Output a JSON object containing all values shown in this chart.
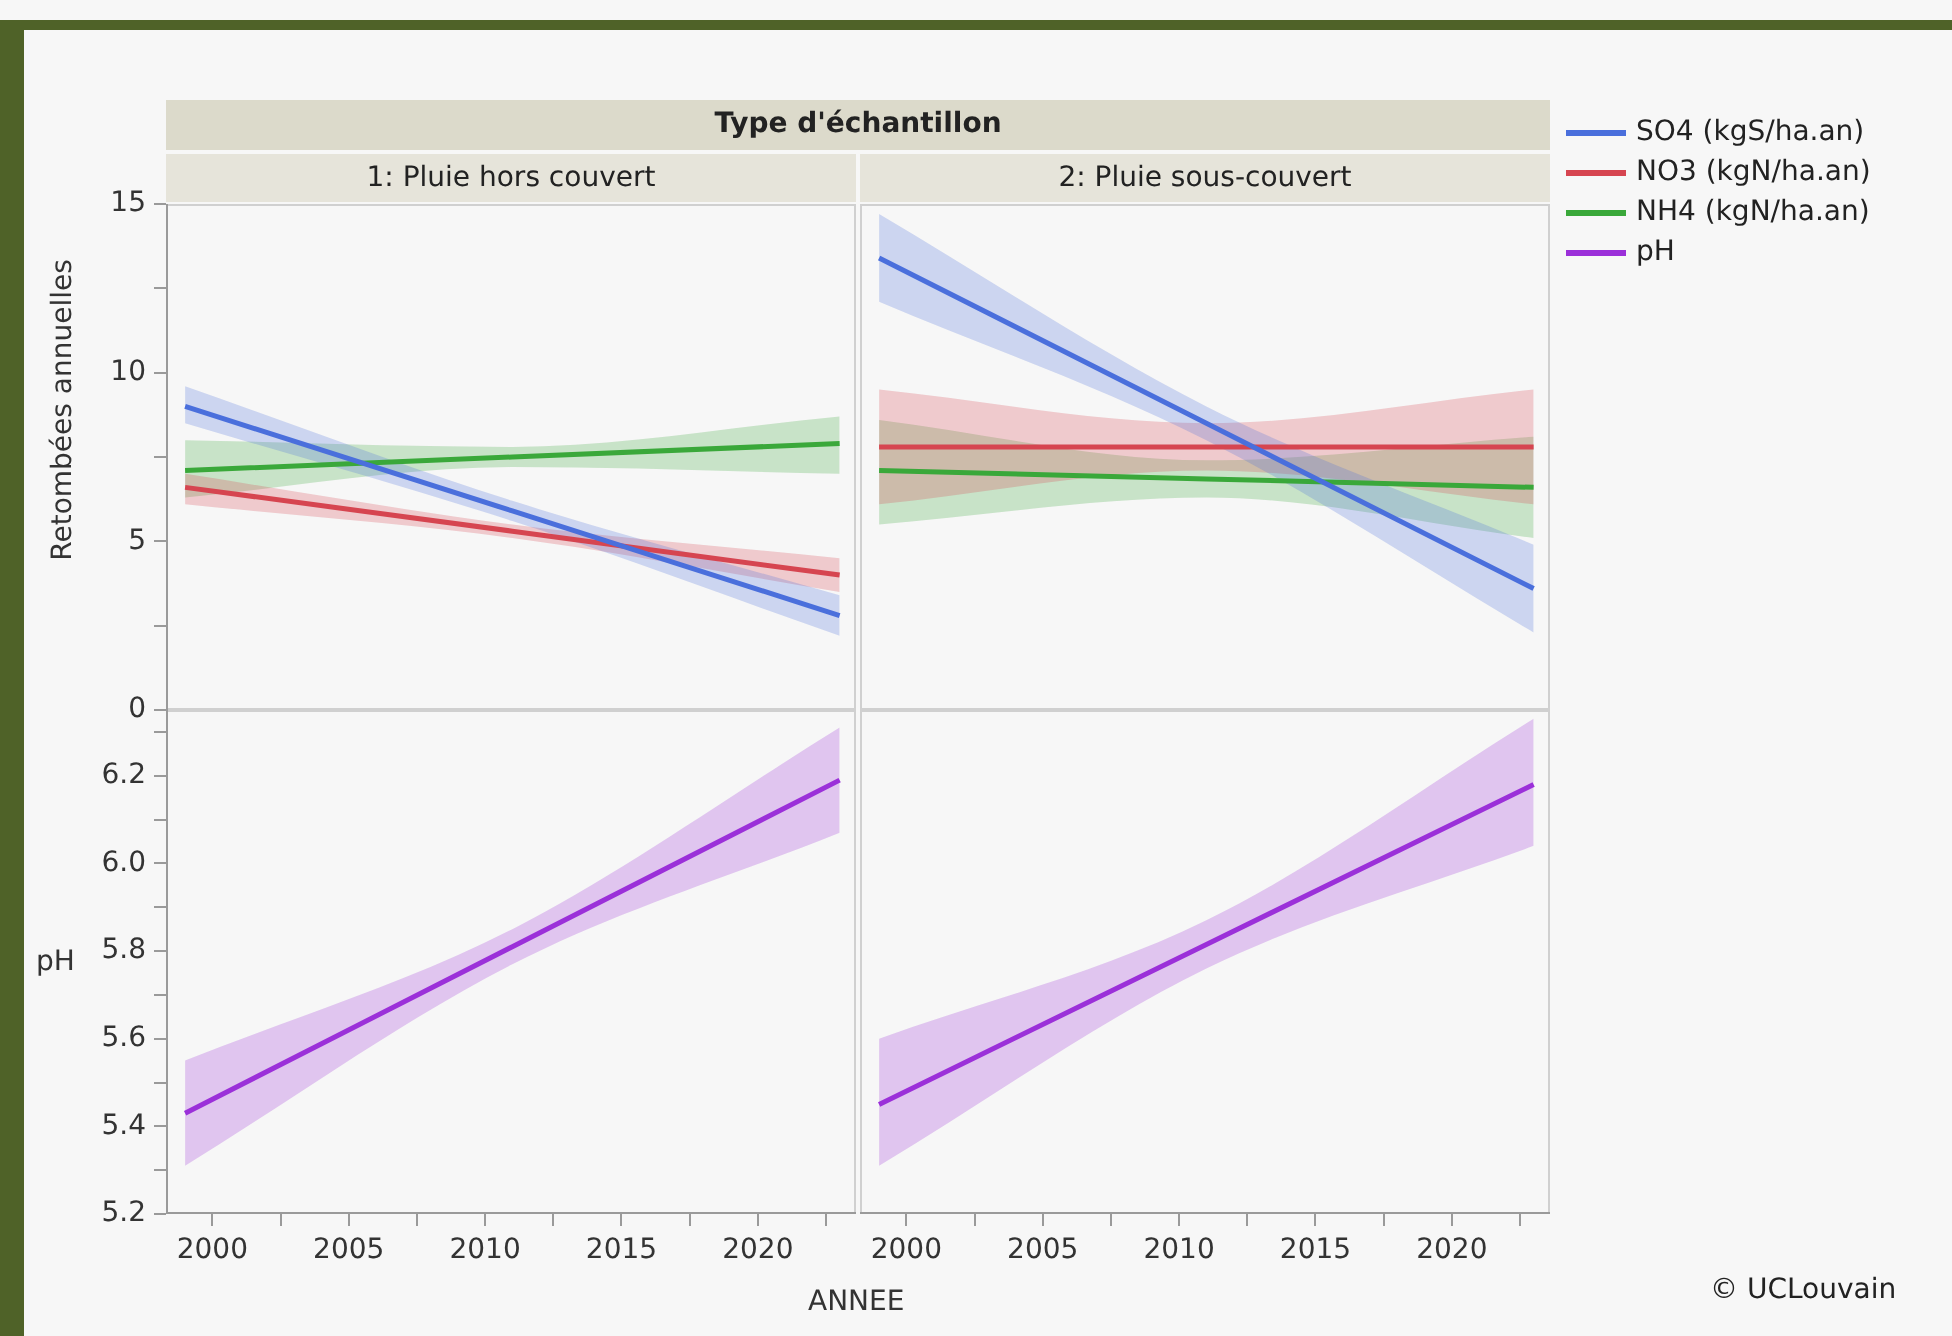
{
  "chart_data": [
    {
      "type": "line",
      "title": "Type d'échantillon",
      "subtitle": "1: Pluie hors couvert",
      "ylabel": "Retombées annuelles",
      "x": [
        1999,
        2011,
        2023
      ],
      "xlim": [
        1998.3,
        2023.6
      ],
      "ylim": [
        0,
        15
      ],
      "yticks": [
        0,
        {
          "value": 2.5,
          "label": null
        },
        5,
        {
          "value": 7.5,
          "label": null
        },
        10,
        {
          "value": 12.5,
          "label": null
        },
        15
      ],
      "tick_labels": "y",
      "marker": "none",
      "series": [
        {
          "color": "#4a6fdc",
          "values": [
            9.0,
            5.9,
            2.8
          ],
          "lower": [
            8.5,
            5.6,
            2.2
          ],
          "upper": [
            9.6,
            6.2,
            3.4
          ]
        },
        {
          "color": "#d64550",
          "values": [
            6.6,
            5.3,
            4.0
          ],
          "lower": [
            6.1,
            5.1,
            3.5
          ],
          "upper": [
            7.0,
            5.5,
            4.5
          ]
        },
        {
          "color": "#3aa83a",
          "values": [
            7.1,
            7.5,
            7.9
          ],
          "lower": [
            6.3,
            7.2,
            7.0
          ],
          "upper": [
            8.0,
            7.8,
            8.7
          ]
        }
      ]
    },
    {
      "type": "line",
      "subtitle": "2: Pluie sous-couvert",
      "x": [
        1999,
        2011,
        2023
      ],
      "xlim": [
        1998.3,
        2023.6
      ],
      "ylim": [
        0,
        15
      ],
      "tick_labels": false,
      "marker": "none",
      "legend": "right",
      "series": [
        {
          "name": "SO4 (kgS/ha.an)",
          "color": "#4a6fdc",
          "values": [
            13.4,
            8.5,
            3.6
          ],
          "lower": [
            12.1,
            8.0,
            2.3
          ],
          "upper": [
            14.7,
            9.0,
            4.9
          ]
        },
        {
          "name": "NO3 (kgN/ha.an)",
          "color": "#d64550",
          "values": [
            7.8,
            7.8,
            7.8
          ],
          "lower": [
            6.1,
            7.1,
            6.1
          ],
          "upper": [
            9.5,
            8.5,
            9.5
          ]
        },
        {
          "name": "NH4 (kgN/ha.an)",
          "color": "#3aa83a",
          "values": [
            7.1,
            6.85,
            6.6
          ],
          "lower": [
            5.5,
            6.3,
            5.1
          ],
          "upper": [
            8.6,
            7.4,
            8.1
          ]
        }
      ]
    },
    {
      "type": "line",
      "ylabel": "pH",
      "xlabel": "ANNEE",
      "x": [
        1999,
        2011,
        2023
      ],
      "xlim": [
        1998.3,
        2023.6
      ],
      "xticks": [
        2000,
        {
          "value": 2002.5,
          "label": null
        },
        2005,
        {
          "value": 2007.5,
          "label": null
        },
        2010,
        {
          "value": 2012.5,
          "label": null
        },
        2015,
        {
          "value": 2017.5,
          "label": null
        },
        2020,
        {
          "value": 2022.5,
          "label": null
        }
      ],
      "ylim": [
        5.2,
        6.35
      ],
      "yticks": [
        {
          "value": 5.2,
          "label": "5.2"
        },
        {
          "value": 5.3,
          "label": null
        },
        {
          "value": 5.4,
          "label": "5.4"
        },
        {
          "value": 5.5,
          "label": null
        },
        {
          "value": 5.6,
          "label": "5.6"
        },
        {
          "value": 5.7,
          "label": null
        },
        {
          "value": 5.8,
          "label": "5.8"
        },
        {
          "value": 5.9,
          "label": null
        },
        {
          "value": 6.0,
          "label": "6.0"
        },
        {
          "value": 6.1,
          "label": null
        },
        {
          "value": 6.2,
          "label": "6.2"
        },
        {
          "value": 6.3,
          "label": null
        }
      ],
      "marker": "none",
      "series": [
        {
          "color": "#9b30d9",
          "values": [
            5.43,
            5.81,
            6.19
          ],
          "lower": [
            5.31,
            5.77,
            6.07
          ],
          "upper": [
            5.55,
            5.85,
            6.31
          ]
        }
      ]
    },
    {
      "type": "line",
      "x": [
        1999,
        2011,
        2023
      ],
      "xlim": [
        1998.3,
        2023.6
      ],
      "xticks": [
        2000,
        {
          "value": 2002.5,
          "label": null
        },
        2005,
        {
          "value": 2007.5,
          "label": null
        },
        2010,
        {
          "value": 2012.5,
          "label": null
        },
        2015,
        {
          "value": 2017.5,
          "label": null
        },
        2020,
        {
          "value": 2022.5,
          "label": null
        }
      ],
      "ylim": [
        5.2,
        6.35
      ],
      "tick_labels": "x",
      "marker": "none",
      "legend": "right",
      "annotations": [
        "© UCLouvain"
      ],
      "series": [
        {
          "name": "pH",
          "color": "#9b30d9",
          "values": [
            5.45,
            5.815,
            6.18
          ],
          "lower": [
            5.31,
            5.76,
            6.04
          ],
          "upper": [
            5.6,
            5.87,
            6.33
          ]
        }
      ]
    }
  ]
}
